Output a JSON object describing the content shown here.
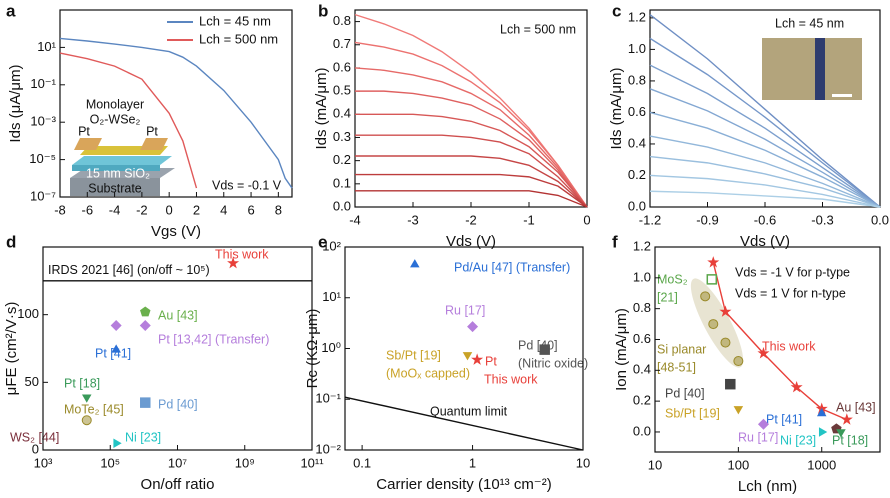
{
  "chart_data": [
    {
      "type": "line",
      "panel_label": "a",
      "xlabel": "Vgs (V)",
      "ylabel": "Ids (μA/μm)",
      "yscale": "log",
      "xlim": [
        -8,
        9
      ],
      "xticks": [
        -8,
        -6,
        -4,
        -2,
        0,
        2,
        4,
        6,
        8
      ],
      "ylim": [
        1e-07,
        1000
      ],
      "yticks": [
        {
          "value": 1e-07,
          "label": "10⁻⁷"
        },
        {
          "value": 1e-05,
          "label": "10⁻⁵"
        },
        {
          "value": 0.001,
          "label": "10⁻³"
        },
        {
          "value": 0.1,
          "label": "10⁻¹"
        },
        {
          "value": 10,
          "label": "10¹"
        }
      ],
      "x": [
        -8,
        -6,
        -4,
        -2,
        0,
        1,
        2,
        4,
        6,
        8,
        8.5,
        9
      ],
      "series": [
        {
          "name": "Lch = 45 nm",
          "color": "#5b86c0",
          "values": [
            30,
            22,
            15,
            10,
            6,
            3,
            1,
            0.05,
            0.001,
            1e-05,
            1e-06,
            3e-07
          ]
        },
        {
          "name": "Lch = 500 nm",
          "color": "#e05a5a",
          "values": [
            5,
            2.5,
            1,
            0.2,
            0.003,
            0.0001,
            3e-07,
            null,
            null,
            null,
            null,
            null
          ]
        }
      ],
      "legend": "upper right",
      "annotations": [
        "Monolayer",
        "O₂-WSe₂",
        "Pt",
        "Pt",
        "15 nm SiO₂",
        "Substrate",
        "Vds = -0.1 V"
      ]
    },
    {
      "type": "line",
      "panel_label": "b",
      "xlabel": "Vds (V)",
      "ylabel": "Ids (mA/μm)",
      "xlim": [
        -4,
        0
      ],
      "xticks": [
        -4,
        -3,
        -2,
        -1,
        0
      ],
      "ylim": [
        0,
        0.85
      ],
      "yticks": [
        {
          "value": 0,
          "label": "0.0"
        },
        0.1,
        0.2,
        0.3,
        0.4,
        0.5,
        0.6,
        0.7,
        0.8
      ],
      "x": [
        -4,
        -3.5,
        -3,
        -2.5,
        -2,
        -1.5,
        -1,
        -0.5,
        0
      ],
      "series": [
        {
          "color": "#f07a78",
          "values": [
            0.83,
            0.79,
            0.74,
            0.67,
            0.58,
            0.47,
            0.34,
            0.18,
            0
          ]
        },
        {
          "color": "#ec7270",
          "values": [
            0.71,
            0.69,
            0.66,
            0.61,
            0.54,
            0.45,
            0.33,
            0.18,
            0
          ]
        },
        {
          "color": "#e66a68",
          "values": [
            0.6,
            0.59,
            0.57,
            0.54,
            0.49,
            0.42,
            0.31,
            0.17,
            0
          ]
        },
        {
          "color": "#df6160",
          "values": [
            0.5,
            0.5,
            0.49,
            0.47,
            0.44,
            0.38,
            0.29,
            0.16,
            0
          ]
        },
        {
          "color": "#d75857",
          "values": [
            0.4,
            0.4,
            0.4,
            0.39,
            0.37,
            0.33,
            0.26,
            0.15,
            0
          ]
        },
        {
          "color": "#cf4f4f",
          "values": [
            0.31,
            0.31,
            0.31,
            0.31,
            0.3,
            0.28,
            0.23,
            0.13,
            0
          ]
        },
        {
          "color": "#c64646",
          "values": [
            0.22,
            0.22,
            0.22,
            0.22,
            0.22,
            0.21,
            0.18,
            0.11,
            0
          ]
        },
        {
          "color": "#bd3d3d",
          "values": [
            0.14,
            0.14,
            0.14,
            0.14,
            0.14,
            0.14,
            0.13,
            0.09,
            0
          ]
        },
        {
          "color": "#b33333",
          "values": [
            0.07,
            0.07,
            0.07,
            0.07,
            0.07,
            0.07,
            0.07,
            0.05,
            0
          ]
        }
      ],
      "annotations": [
        "Lch = 500 nm"
      ]
    },
    {
      "type": "line",
      "panel_label": "c",
      "xlabel": "Vds (V)",
      "ylabel": "Ids (mA/μm)",
      "xlim": [
        -1.2,
        0
      ],
      "xticks": [
        -1.2,
        -0.9,
        -0.6,
        -0.3,
        {
          "value": 0,
          "label": "0.0"
        }
      ],
      "ylim": [
        0,
        1.25
      ],
      "yticks": [
        {
          "value": 0,
          "label": "0.0"
        },
        0.2,
        0.4,
        0.6,
        0.8,
        {
          "value": 1,
          "label": "1.0"
        },
        1.2
      ],
      "x": [
        -1.2,
        -0.9,
        -0.6,
        -0.3,
        0
      ],
      "series": [
        {
          "color": "#6f8fc4",
          "values": [
            1.22,
            0.94,
            0.62,
            0.3,
            0
          ]
        },
        {
          "color": "#7597c9",
          "values": [
            1.07,
            0.84,
            0.57,
            0.28,
            0
          ]
        },
        {
          "color": "#7c9fcd",
          "values": [
            0.9,
            0.72,
            0.5,
            0.25,
            0
          ]
        },
        {
          "color": "#83a7d2",
          "values": [
            0.75,
            0.61,
            0.43,
            0.22,
            0
          ]
        },
        {
          "color": "#8aafd6",
          "values": [
            0.6,
            0.5,
            0.36,
            0.19,
            0
          ]
        },
        {
          "color": "#92b7da",
          "values": [
            0.45,
            0.38,
            0.28,
            0.15,
            0
          ]
        },
        {
          "color": "#9abfde",
          "values": [
            0.32,
            0.28,
            0.21,
            0.12,
            0
          ]
        },
        {
          "color": "#a3c7e2",
          "values": [
            0.2,
            0.18,
            0.14,
            0.08,
            0
          ]
        },
        {
          "color": "#accfe6",
          "values": [
            0.1,
            0.09,
            0.07,
            0.05,
            0
          ]
        }
      ],
      "annotations": [
        "Lch = 45 nm"
      ]
    },
    {
      "type": "scatter",
      "panel_label": "d",
      "xlabel": "On/off ratio",
      "ylabel": "μFE (cm²/V·s)",
      "xscale": "log",
      "xlim": [
        1000,
        100000000000.0
      ],
      "xticks": [
        {
          "value": 1000,
          "label": "10³"
        },
        {
          "value": 100000,
          "label": "10⁵"
        },
        {
          "value": 10000000,
          "label": "10⁷"
        },
        {
          "value": 1000000000,
          "label": "10⁹"
        },
        {
          "value": 100000000000.0,
          "label": "10¹¹"
        }
      ],
      "ylim": [
        0,
        150
      ],
      "yticks": [
        0,
        50,
        100
      ],
      "reference_line": {
        "value": 125,
        "label": "IRDS 2021 [46] (on/off ~ 10⁵)"
      },
      "series": [
        {
          "name": "This work",
          "color": "#e8403a",
          "marker": "star",
          "x": [
            450000000
          ],
          "values": [
            138
          ]
        },
        {
          "name": "Au [43]",
          "color": "#6ab04c",
          "marker": "pentagon",
          "x": [
            1100000
          ],
          "values": [
            102
          ]
        },
        {
          "name": "Pt [13,42] (Transfer)",
          "color": "#b57edc",
          "marker": "diamond",
          "x": [
            150000,
            1100000
          ],
          "values": [
            92,
            92
          ]
        },
        {
          "name": "Pt [41]",
          "color": "#2a6fd6",
          "marker": "triangle-up",
          "x": [
            150000
          ],
          "values": [
            74
          ]
        },
        {
          "name": "Pt [18]",
          "color": "#3a9a5a",
          "marker": "triangle-down",
          "x": [
            20000
          ],
          "values": [
            39
          ]
        },
        {
          "name": "MoTe₂ [45]",
          "color": "#9a8a2a",
          "marker": "half-circle",
          "x": [
            20000
          ],
          "values": [
            22
          ]
        },
        {
          "name": "Pd [40]",
          "color": "#6b9bd1",
          "marker": "square",
          "x": [
            1100000
          ],
          "values": [
            35
          ]
        },
        {
          "name": "Ni [23]",
          "color": "#22c4c4",
          "marker": "triangle-right",
          "x": [
            150000
          ],
          "values": [
            5
          ]
        }
      ],
      "annotations": [
        "WS₂ [44]"
      ]
    },
    {
      "type": "scatter",
      "panel_label": "e",
      "xlabel": "Carrier density (10¹³ cm⁻²)",
      "ylabel": "Rc (KΩ·μm)",
      "xscale": "log",
      "yscale": "log",
      "xlim": [
        0.07,
        10
      ],
      "xticks": [
        0.1,
        1,
        10
      ],
      "ylim": [
        0.01,
        100
      ],
      "yticks": [
        {
          "value": 0.01,
          "label": "10⁻²"
        },
        {
          "value": 0.1,
          "label": "10⁻¹"
        },
        {
          "value": 1,
          "label": "10⁰"
        },
        {
          "value": 10,
          "label": "10¹"
        },
        {
          "value": 100,
          "label": "10²"
        }
      ],
      "series": [
        {
          "name": "Pd/Au [47] (Transfer)",
          "color": "#2a6fd6",
          "marker": "triangle-up",
          "x": [
            0.3
          ],
          "values": [
            45
          ]
        },
        {
          "name": "Ru [17]",
          "color": "#b57edc",
          "marker": "diamond",
          "x": [
            1
          ],
          "values": [
            2.7
          ]
        },
        {
          "name": "Pd [40]",
          "color": "#555555",
          "marker": "square",
          "x": [
            4.5
          ],
          "values": [
            0.95
          ]
        },
        {
          "name": "Sb/Pt [19]",
          "color": "#c9a227",
          "marker": "triangle-down",
          "x": [
            0.9
          ],
          "values": [
            0.75
          ]
        },
        {
          "name": "Pt",
          "color": "#e8403a",
          "marker": "star",
          "x": [
            1.1
          ],
          "values": [
            0.6
          ]
        },
        {
          "name": "Quantum limit",
          "color": "#111111",
          "style": "line",
          "x": [
            0.07,
            10
          ],
          "values": [
            0.11,
            0.01
          ]
        }
      ],
      "annotations": [
        "(Nitric oxide)",
        "(MoOₓ capped)",
        "This work"
      ]
    },
    {
      "type": "scatter",
      "panel_label": "f",
      "xlabel": "Lch (nm)",
      "ylabel": "Ion (mA/μm)",
      "xscale": "log",
      "xlim": [
        10,
        5000
      ],
      "xticks": [
        10,
        100,
        1000
      ],
      "ylim": [
        -0.13,
        1.2
      ],
      "yticks": [
        {
          "value": 0,
          "label": "0.0"
        },
        0.2,
        0.4,
        0.6,
        0.8,
        {
          "value": 1,
          "label": "1.0"
        },
        1.2
      ],
      "series": [
        {
          "name": "This work",
          "color": "#e8403a",
          "marker": "star",
          "connect": true,
          "x": [
            50,
            70,
            200,
            500,
            1000,
            2000
          ],
          "values": [
            1.1,
            0.78,
            0.51,
            0.29,
            0.15,
            0.08
          ]
        },
        {
          "name": "MoS₂",
          "color": "#5aa64a",
          "marker": "open-square",
          "x": [
            48
          ],
          "values": [
            0.99
          ]
        },
        {
          "name": "Si planar",
          "color": "#9a8a2a",
          "marker": "half-circle",
          "x": [
            40,
            50,
            70,
            100
          ],
          "values": [
            0.88,
            0.7,
            0.58,
            0.46
          ]
        },
        {
          "name": "Pd [40]",
          "color": "#444444",
          "marker": "square",
          "x": [
            80
          ],
          "values": [
            0.31
          ]
        },
        {
          "name": "Sb/Pt [19]",
          "color": "#c9a227",
          "marker": "triangle-down",
          "x": [
            100
          ],
          "values": [
            0.15
          ]
        },
        {
          "name": "Pt [41]",
          "color": "#2a6fd6",
          "marker": "triangle-up",
          "x": [
            1000
          ],
          "values": [
            0.12
          ]
        },
        {
          "name": "Ru [17]",
          "color": "#b57edc",
          "marker": "diamond",
          "x": [
            200
          ],
          "values": [
            0.05
          ]
        },
        {
          "name": "Ni [23]",
          "color": "#22c4c4",
          "marker": "triangle-right",
          "x": [
            1000
          ],
          "values": [
            0
          ]
        },
        {
          "name": "Au [43]",
          "color": "#6b3a3a",
          "marker": "pentagon",
          "x": [
            1500
          ],
          "values": [
            0.02
          ]
        },
        {
          "name": "Pt [18]",
          "color": "#3a9a5a",
          "marker": "triangle-down",
          "x": [
            1700
          ],
          "values": [
            0
          ]
        }
      ],
      "annotations": [
        "Vds = -1 V for p-type",
        "Vds = 1 V for n-type",
        "[21]",
        "[48-51]"
      ]
    }
  ]
}
